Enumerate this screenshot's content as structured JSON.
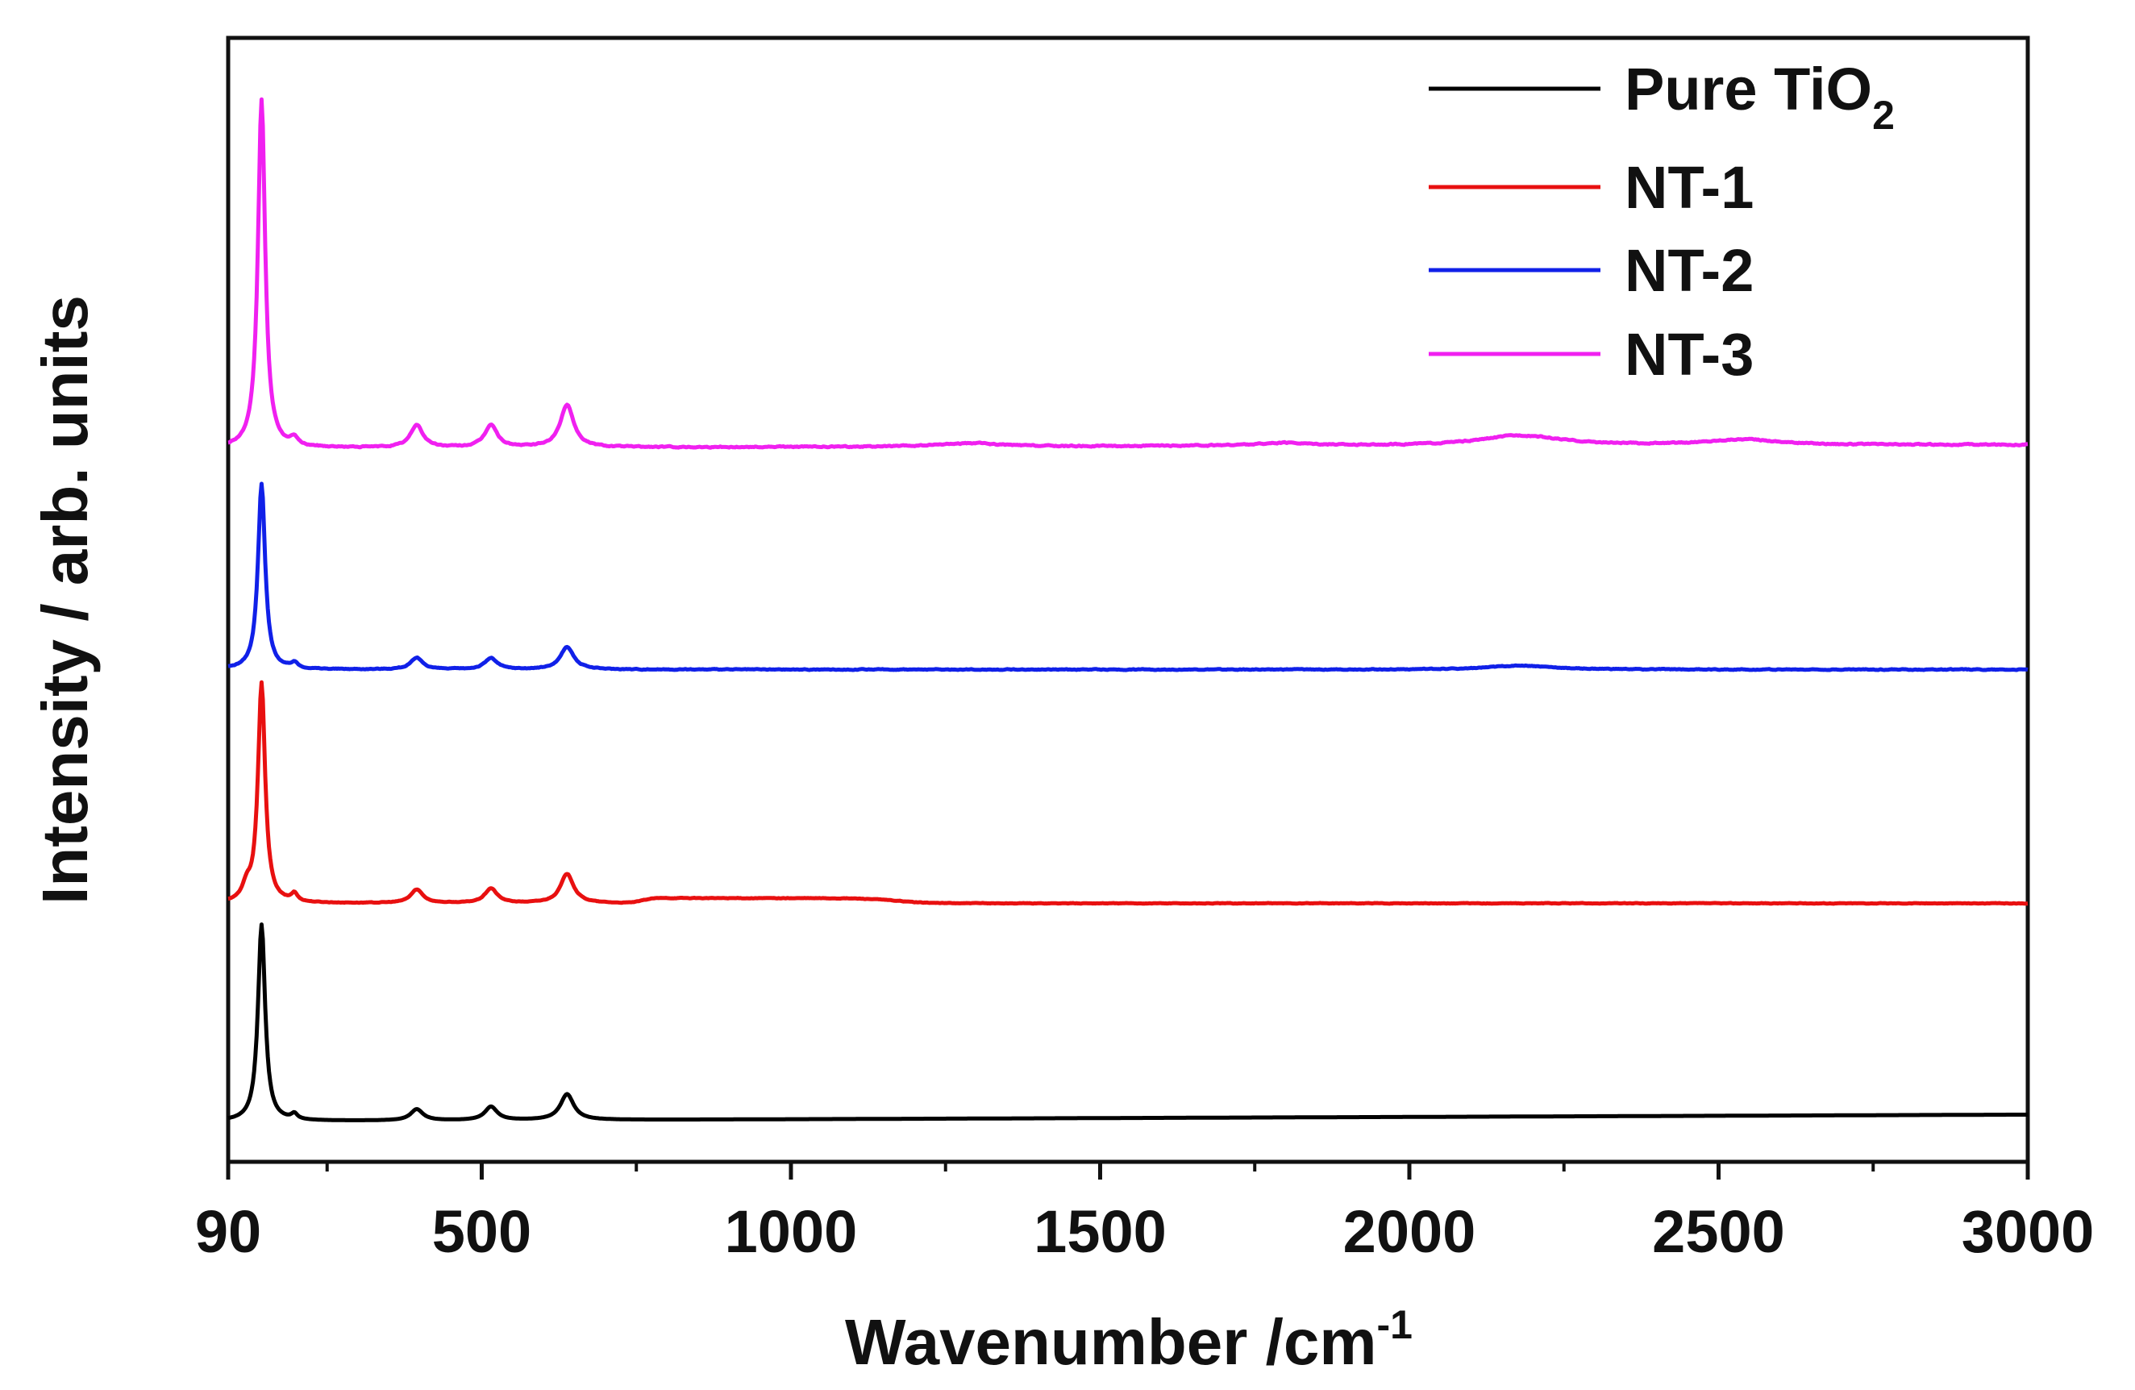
{
  "chart_data": {
    "type": "line",
    "title": "",
    "xlabel": "Wavenumber /cm",
    "xlabel_superscript": "-1",
    "ylabel": "Intensity / arb. units",
    "xlim": [
      90,
      3000
    ],
    "ylim": [
      0,
      100
    ],
    "x_ticks": [
      90,
      500,
      1000,
      1500,
      2000,
      2500,
      3000
    ],
    "x_tick_labels": [
      "90",
      "500",
      "1000",
      "1500",
      "2000",
      "2500",
      "3000"
    ],
    "x_minor_ticks": [
      250,
      750,
      1250,
      1750,
      2250,
      2750
    ],
    "y_ticks_shown": false,
    "grid": false,
    "legend_position": "top-right",
    "series": [
      {
        "name": "Pure TiO2",
        "legend_label": "Pure TiO",
        "legend_subscript": "2",
        "color": "#000000",
        "baseline_start": 3.6,
        "baseline_end": 4.2,
        "peaks": [
          [
            144,
            17.5,
            7
          ],
          [
            197,
            0.5,
            6
          ],
          [
            395,
            1.0,
            12
          ],
          [
            515,
            1.2,
            12
          ],
          [
            638,
            2.3,
            13
          ]
        ],
        "plateau": null,
        "noise": 0.0
      },
      {
        "name": "NT-1",
        "legend_label": "NT-1",
        "color": "#e81010",
        "baseline_start": 23.0,
        "baseline_end": 23.0,
        "peaks": [
          [
            120,
            1.2,
            8
          ],
          [
            144,
            19.5,
            7
          ],
          [
            197,
            0.7,
            6
          ],
          [
            395,
            1.2,
            12
          ],
          [
            515,
            1.3,
            12
          ],
          [
            638,
            2.6,
            13
          ]
        ],
        "plateau": [
          760,
          1170,
          0.45
        ],
        "noise": 0.05
      },
      {
        "name": "NT-2",
        "legend_label": "NT-2",
        "color": "#1020e8",
        "baseline_start": 43.8,
        "baseline_end": 43.8,
        "peaks": [
          [
            144,
            16.5,
            7
          ],
          [
            197,
            0.5,
            6
          ],
          [
            395,
            1.0,
            12
          ],
          [
            515,
            1.0,
            12
          ],
          [
            638,
            2.0,
            13
          ],
          [
            2180,
            0.35,
            60
          ]
        ],
        "plateau": null,
        "noise": 0.07
      },
      {
        "name": "NT-3",
        "legend_label": "NT-3",
        "color": "#f020f0",
        "baseline_start": 63.5,
        "baseline_end": 63.8,
        "peaks": [
          [
            144,
            31.0,
            7
          ],
          [
            197,
            0.7,
            6
          ],
          [
            395,
            2.0,
            12
          ],
          [
            515,
            2.0,
            12
          ],
          [
            638,
            3.8,
            13
          ],
          [
            1290,
            0.3,
            60
          ],
          [
            1800,
            0.25,
            60
          ],
          [
            2180,
            0.9,
            80
          ],
          [
            2540,
            0.5,
            70
          ]
        ],
        "plateau": null,
        "noise": 0.1
      }
    ]
  }
}
